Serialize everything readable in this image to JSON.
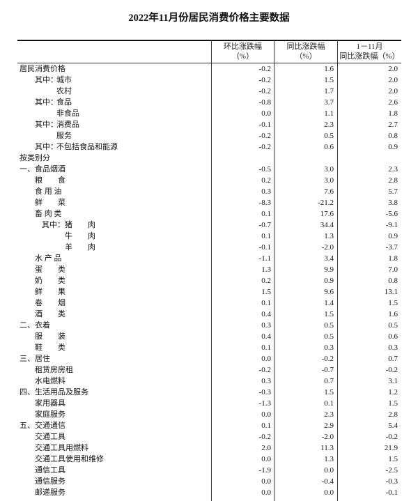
{
  "title": "2022年11月份居民消费价格主要数据",
  "headers": {
    "mom": [
      "环比涨跌幅",
      "（%）"
    ],
    "yoy": [
      "同比涨跌幅",
      "（%）"
    ],
    "ytd": [
      "1－11月",
      "同比涨跌幅（%）"
    ]
  },
  "rows": [
    {
      "prefix": "",
      "label": "居民消费价格",
      "mom": "-0.2",
      "yoy": "1.6",
      "ytd": "2.0"
    },
    {
      "prefix": "其中：",
      "label": "城市",
      "mom": "-0.2",
      "yoy": "1.5",
      "ytd": "2.0"
    },
    {
      "prefix": "",
      "label": "农村",
      "mom": "-0.2",
      "yoy": "1.7",
      "ytd": "2.0"
    },
    {
      "prefix": "其中：",
      "label": "食品",
      "mom": "-0.8",
      "yoy": "3.7",
      "ytd": "2.6"
    },
    {
      "prefix": "",
      "label": "非食品",
      "mom": "0.0",
      "yoy": "1.1",
      "ytd": "1.8"
    },
    {
      "prefix": "其中：",
      "label": "消费品",
      "mom": "-0.1",
      "yoy": "2.3",
      "ytd": "2.7"
    },
    {
      "prefix": "",
      "label": "服务",
      "mom": "-0.2",
      "yoy": "0.5",
      "ytd": "0.8"
    },
    {
      "prefix": "其中：",
      "label": "不包括食品和能源",
      "mom": "-0.2",
      "yoy": "0.6",
      "ytd": "0.9"
    },
    {
      "prefix": "",
      "label": "按类别分",
      "mom": "",
      "yoy": "",
      "ytd": ""
    },
    {
      "prefix": "一、",
      "label": "食品烟酒",
      "mom": "-0.5",
      "yoy": "3.0",
      "ytd": "2.3"
    },
    {
      "prefix": "",
      "label": "粮　　食",
      "mom": "0.2",
      "yoy": "3.0",
      "ytd": "2.8"
    },
    {
      "prefix": "",
      "label": "食 用 油",
      "mom": "0.3",
      "yoy": "7.6",
      "ytd": "5.7"
    },
    {
      "prefix": "",
      "label": "鲜　　菜",
      "mom": "-8.3",
      "yoy": "-21.2",
      "ytd": "3.8"
    },
    {
      "prefix": "",
      "label": "畜 肉 类",
      "mom": "0.1",
      "yoy": "17.6",
      "ytd": "-5.6"
    },
    {
      "prefix": "其中：",
      "label": "猪　　肉",
      "mom": "-0.7",
      "yoy": "34.4",
      "ytd": "-9.1"
    },
    {
      "prefix": "",
      "label": "牛　　肉",
      "mom": "0.1",
      "yoy": "1.3",
      "ytd": "0.9"
    },
    {
      "prefix": "",
      "label": "羊　　肉",
      "mom": "-0.1",
      "yoy": "-2.0",
      "ytd": "-3.7"
    },
    {
      "prefix": "",
      "label": "水 产 品",
      "mom": "-1.1",
      "yoy": "3.4",
      "ytd": "1.8"
    },
    {
      "prefix": "",
      "label": "蛋　　类",
      "mom": "1.3",
      "yoy": "9.9",
      "ytd": "7.0"
    },
    {
      "prefix": "",
      "label": "奶　　类",
      "mom": "0.2",
      "yoy": "0.9",
      "ytd": "0.8"
    },
    {
      "prefix": "",
      "label": "鲜　　果",
      "mom": "1.5",
      "yoy": "9.6",
      "ytd": "13.1"
    },
    {
      "prefix": "",
      "label": "卷　　烟",
      "mom": "0.1",
      "yoy": "1.4",
      "ytd": "1.5"
    },
    {
      "prefix": "",
      "label": "酒　　类",
      "mom": "0.4",
      "yoy": "1.5",
      "ytd": "1.6"
    },
    {
      "prefix": "二、",
      "label": "衣着",
      "mom": "0.3",
      "yoy": "0.5",
      "ytd": "0.5"
    },
    {
      "prefix": "",
      "label": "服　　装",
      "mom": "0.4",
      "yoy": "0.5",
      "ytd": "0.6"
    },
    {
      "prefix": "",
      "label": "鞋　　类",
      "mom": "0.1",
      "yoy": "0.3",
      "ytd": "0.3"
    },
    {
      "prefix": "三、",
      "label": "居住",
      "mom": "0.0",
      "yoy": "-0.2",
      "ytd": "0.7"
    },
    {
      "prefix": "",
      "label": "租赁房房租",
      "mom": "-0.2",
      "yoy": "-0.7",
      "ytd": "-0.2"
    },
    {
      "prefix": "",
      "label": "水电燃料",
      "mom": "0.3",
      "yoy": "0.7",
      "ytd": "3.1"
    },
    {
      "prefix": "四、",
      "label": "生活用品及服务",
      "mom": "-0.3",
      "yoy": "1.5",
      "ytd": "1.2"
    },
    {
      "prefix": "",
      "label": "家用器具",
      "mom": "-1.3",
      "yoy": "0.1",
      "ytd": "1.5"
    },
    {
      "prefix": "",
      "label": "家庭服务",
      "mom": "0.0",
      "yoy": "2.3",
      "ytd": "2.8"
    },
    {
      "prefix": "五、",
      "label": "交通通信",
      "mom": "0.1",
      "yoy": "2.9",
      "ytd": "5.4"
    },
    {
      "prefix": "",
      "label": "交通工具",
      "mom": "-0.2",
      "yoy": "-2.0",
      "ytd": "-0.2"
    },
    {
      "prefix": "",
      "label": "交通工具用燃料",
      "mom": "2.0",
      "yoy": "11.3",
      "ytd": "21.9"
    },
    {
      "prefix": "",
      "label": "交通工具使用和维修",
      "mom": "0.0",
      "yoy": "1.3",
      "ytd": "1.5"
    },
    {
      "prefix": "",
      "label": "通信工具",
      "mom": "-1.9",
      "yoy": "0.0",
      "ytd": "-2.5"
    },
    {
      "prefix": "",
      "label": "通信服务",
      "mom": "0.0",
      "yoy": "-0.4",
      "ytd": "-0.3"
    },
    {
      "prefix": "",
      "label": "邮递服务",
      "mom": "0.0",
      "yoy": "0.0",
      "ytd": "-0.1"
    }
  ]
}
